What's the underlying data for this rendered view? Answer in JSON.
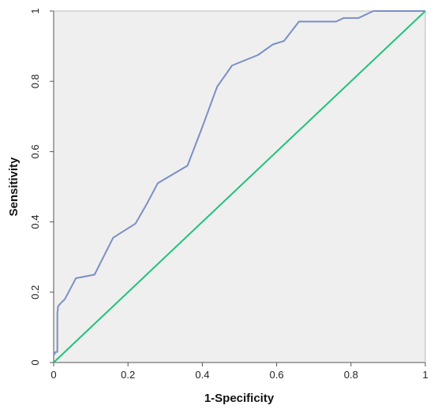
{
  "chart_data": {
    "type": "line",
    "title": "",
    "xlabel": "1-Specificity",
    "ylabel": "Sensitivity",
    "xlim": [
      0,
      1
    ],
    "ylim": [
      0,
      1
    ],
    "grid": false,
    "legend": "none",
    "x_ticks": [
      "0",
      "0.2",
      "0.4",
      "0.6",
      "0.8",
      "1"
    ],
    "y_ticks": [
      "0",
      "0.2",
      "0.4",
      "0.6",
      "0.8",
      "1"
    ],
    "colors": {
      "plot_background": "#efefef",
      "roc": "#7a8fc6",
      "reference": "#1fc27a"
    },
    "series": [
      {
        "color": "#7a8fc6",
        "x": [
          0,
          0.005,
          0.01,
          0.01,
          0.012,
          0.02,
          0.03,
          0.04,
          0.06,
          0.11,
          0.16,
          0.22,
          0.25,
          0.28,
          0.36,
          0.4,
          0.44,
          0.48,
          0.55,
          0.59,
          0.62,
          0.66,
          0.76,
          0.78,
          0.82,
          0.86,
          1
        ],
        "y": [
          0.02,
          0.03,
          0.03,
          0.14,
          0.16,
          0.17,
          0.18,
          0.2,
          0.24,
          0.25,
          0.355,
          0.395,
          0.45,
          0.51,
          0.56,
          0.67,
          0.785,
          0.845,
          0.875,
          0.905,
          0.915,
          0.97,
          0.97,
          0.98,
          0.98,
          1,
          1
        ]
      },
      {
        "color": "#1fc27a",
        "x": [
          0,
          1
        ],
        "y": [
          0,
          1
        ]
      }
    ]
  }
}
